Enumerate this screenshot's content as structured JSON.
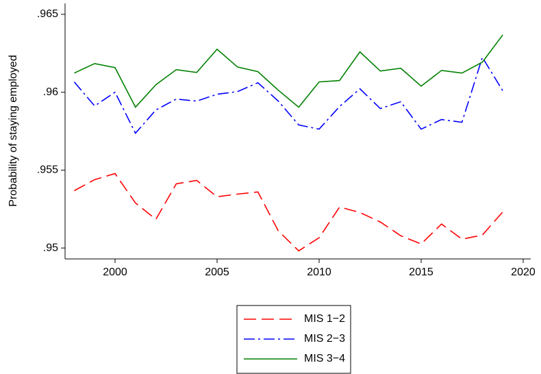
{
  "chart_data": {
    "type": "line",
    "y_label": "Probability of staying employed",
    "x": [
      1998,
      1999,
      2000,
      2001,
      2002,
      2003,
      2004,
      2005,
      2006,
      2007,
      2008,
      2009,
      2010,
      2011,
      2012,
      2013,
      2014,
      2015,
      2016,
      2017,
      2018,
      2019
    ],
    "series": [
      {
        "name": "MIS 1−2",
        "color": "#ff0000",
        "dash": "18 8",
        "values": [
          0.95368,
          0.95439,
          0.95478,
          0.95289,
          0.95184,
          0.95412,
          0.95434,
          0.95329,
          0.95346,
          0.9536,
          0.9511,
          0.94982,
          0.95066,
          0.95263,
          0.95228,
          0.95167,
          0.95079,
          0.95026,
          0.95154,
          0.95057,
          0.95083,
          0.95232
        ]
      },
      {
        "name": "MIS 2−3",
        "color": "#0000ff",
        "dash": "16 5 3 5",
        "values": [
          0.96066,
          0.95912,
          0.96,
          0.95737,
          0.95886,
          0.95956,
          0.95943,
          0.95987,
          0.96004,
          0.96061,
          0.95943,
          0.9579,
          0.95763,
          0.95908,
          0.96022,
          0.95895,
          0.95939,
          0.95763,
          0.95825,
          0.95807,
          0.96224,
          0.96009
        ]
      },
      {
        "name": "MIS 3−4",
        "color": "#008000",
        "dash": "none",
        "values": [
          0.96123,
          0.96184,
          0.96158,
          0.95904,
          0.96048,
          0.96145,
          0.96127,
          0.96276,
          0.96162,
          0.96132,
          0.96013,
          0.95904,
          0.96066,
          0.96075,
          0.96259,
          0.96136,
          0.96154,
          0.96039,
          0.9614,
          0.96123,
          0.96193,
          0.96368
        ]
      }
    ],
    "xlim": [
      1997.55,
      2020.37
    ],
    "xticks": [
      2000,
      2005,
      2010,
      2015,
      2020
    ],
    "ylim": [
      0.9493,
      0.9657
    ],
    "yticks": [
      {
        "value": 0.95,
        "label": ".95"
      },
      {
        "value": 0.955,
        "label": ".955"
      },
      {
        "value": 0.96,
        "label": ".96"
      },
      {
        "value": 0.965,
        "label": ".965"
      }
    ],
    "grid": false
  }
}
